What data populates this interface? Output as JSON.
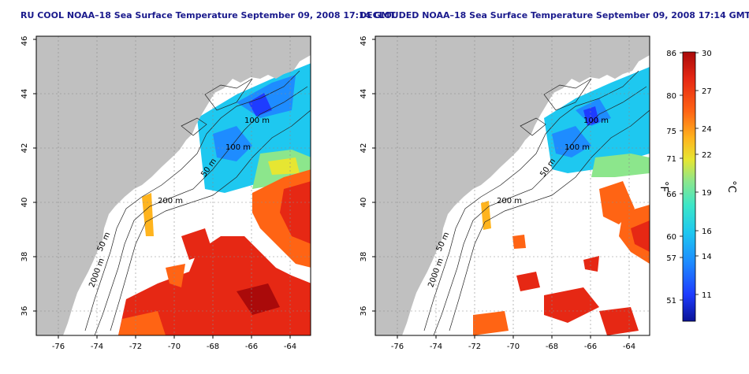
{
  "panels": [
    {
      "title": "RU COOL NOAA–18 Sea Surface Temperature September 09, 2008 17:14 GMT",
      "contour_labels": [
        "100 m",
        "100 m",
        "50 m",
        "200 m",
        "50 m",
        "2000 m"
      ]
    },
    {
      "title": "DECLOUDED NOAA–18 Sea Surface Temperature September 09, 2008 17:14 GMT",
      "contour_labels": [
        "100 m",
        "100 m",
        "50 m",
        "200 m",
        "50 m",
        "2000 m"
      ]
    }
  ],
  "axes": {
    "lon_ticks": [
      "-76",
      "-74",
      "-72",
      "-70",
      "-68",
      "-66",
      "-64"
    ],
    "lat_ticks": [
      "36",
      "38",
      "40",
      "42",
      "44",
      "46"
    ],
    "lon_range": [
      -77.2,
      -63.0
    ],
    "lat_range": [
      35.0,
      46.0
    ],
    "gridlines": "dotted"
  },
  "colorbar": {
    "fahrenheit_label": "°F",
    "celsius_label": "°C",
    "fahrenheit_ticks": [
      "86",
      "80",
      "75",
      "71",
      "66",
      "60",
      "57",
      "51"
    ],
    "celsius_ticks": [
      "30",
      "27",
      "24",
      "22",
      "19",
      "16",
      "14",
      "11"
    ],
    "colors": [
      "#0a1296",
      "#1e3cff",
      "#1e8cff",
      "#1ec8f0",
      "#3ce6c8",
      "#8ce68c",
      "#e6e632",
      "#ffb41e",
      "#ff6414",
      "#e62814",
      "#aa0a0a"
    ]
  },
  "colors": {
    "land": "#c0c0c0",
    "ocean": "#ffffff",
    "title": "#1a1a8c"
  }
}
